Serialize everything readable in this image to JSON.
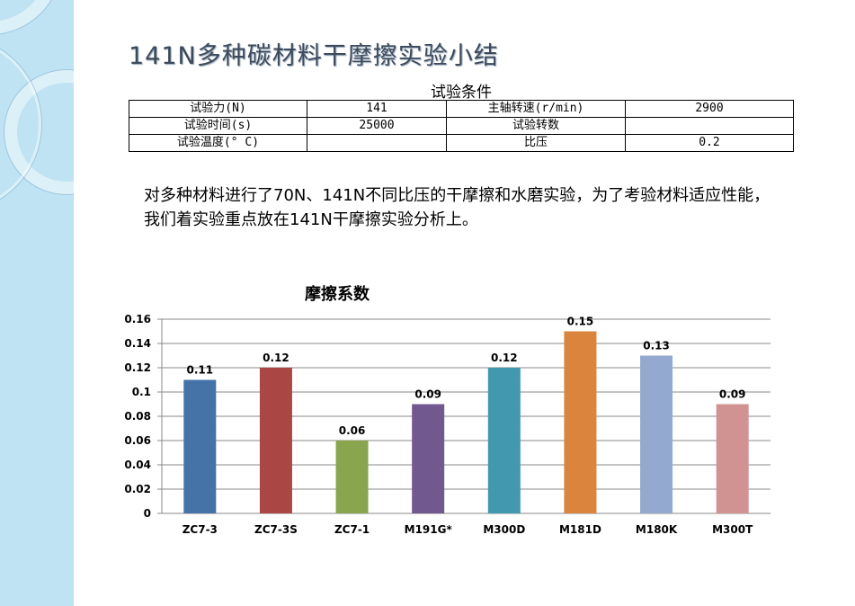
{
  "title": "141N多种碳材料干摩擦实验小结",
  "conditions": {
    "caption": "试验条件",
    "rows": [
      [
        "试验力(N)",
        "141",
        "主轴转速(r/min)",
        "2900"
      ],
      [
        "试验时间(s)",
        "25000",
        "试验转数",
        ""
      ],
      [
        "试验温度(° C)",
        "",
        "比压",
        "0.2"
      ]
    ]
  },
  "paragraph": "对多种材料进行了70N、141N不同比压的干摩擦和水磨实验，为了考验材料适应性能，我们着实验重点放在141N干摩擦实验分析上。",
  "chart_data": {
    "type": "bar",
    "title": "摩擦系数",
    "categories": [
      "ZC7-3",
      "ZC7-3S",
      "ZC7-1",
      "M191G*",
      "M300D",
      "M181D",
      "M180K",
      "M300T"
    ],
    "values": [
      0.11,
      0.12,
      0.06,
      0.09,
      0.12,
      0.15,
      0.13,
      0.09
    ],
    "data_labels": [
      "0.11",
      "0.12",
      "0.06",
      "0.09",
      "0.12",
      "0.15",
      "0.13",
      "0.09"
    ],
    "colors": [
      "#4572a7",
      "#aa4643",
      "#89a54e",
      "#71588f",
      "#4198af",
      "#db843d",
      "#93a9cf",
      "#d19392"
    ],
    "ylim": [
      0,
      0.16
    ],
    "yticks": [
      "0",
      "0.02",
      "0.04",
      "0.06",
      "0.08",
      "0.1",
      "0.12",
      "0.14",
      "0.16"
    ],
    "grid": true
  }
}
